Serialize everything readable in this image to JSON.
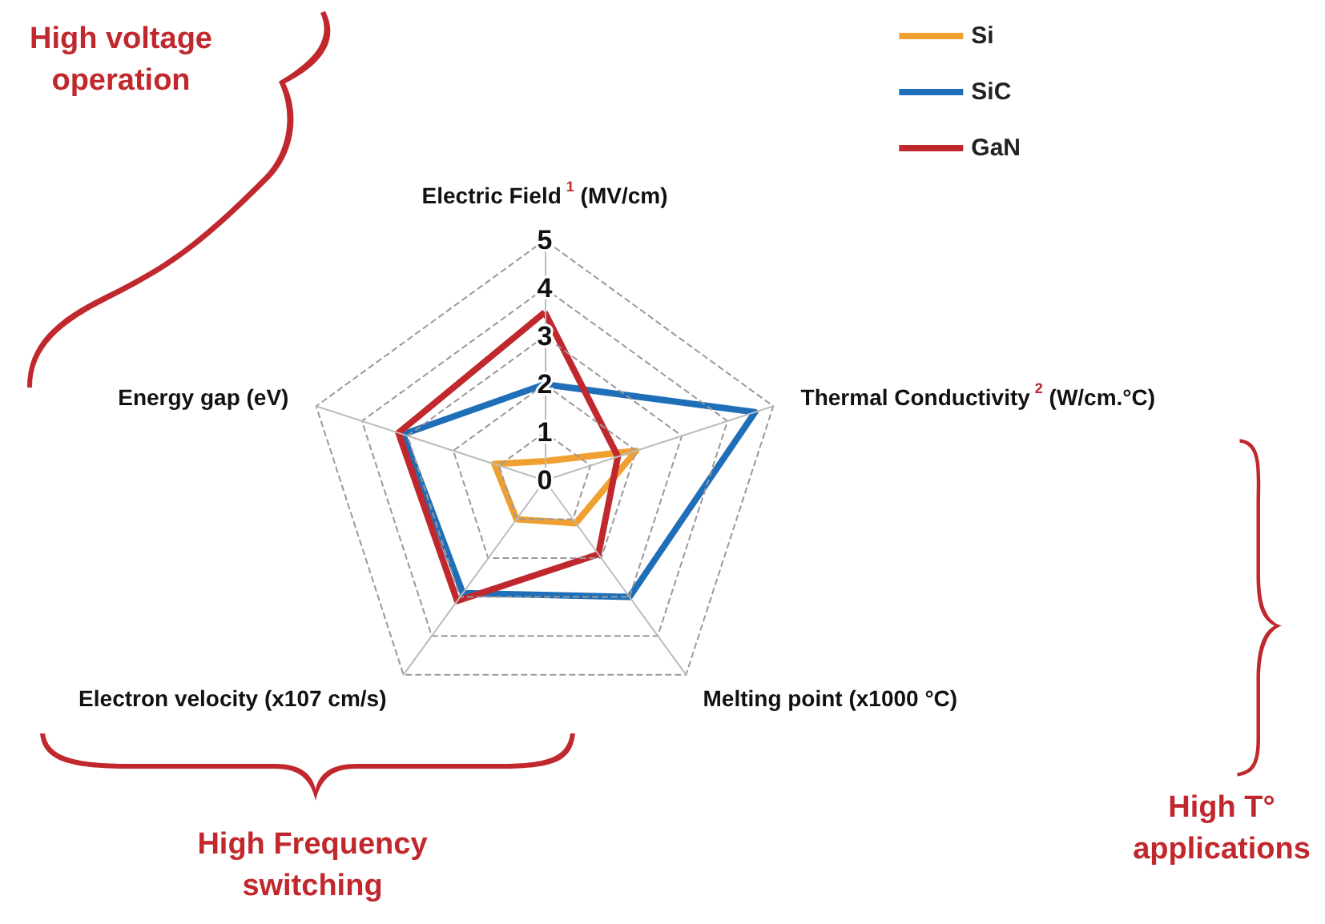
{
  "chart_data": {
    "type": "radar",
    "categories": [
      "Electric Field$^{1}$ (MV/cm)",
      "Thermal Conductivity$^{2}$ (W/cm.°C)",
      "Melting point (x1000 °C)",
      "Electron velocity (x107 cm/s)",
      "Energy gap (eV)"
    ],
    "series": [
      {
        "name": "Si",
        "color": "#f0a030",
        "values": [
          0.4,
          2.0,
          1.1,
          1.0,
          1.1
        ]
      },
      {
        "name": "SiC",
        "color": "#1f6fb8",
        "values": [
          2.0,
          4.6,
          3.0,
          2.9,
          3.1
        ]
      },
      {
        "name": "GaN",
        "color": "#c0282d",
        "values": [
          3.5,
          1.6,
          1.9,
          3.1,
          3.2
        ]
      }
    ],
    "ylim": [
      0,
      5
    ],
    "yticks": [
      0,
      1,
      2,
      3,
      4,
      5
    ],
    "grid": true,
    "legend": "top right",
    "line_style": "solid",
    "marker": "none",
    "annotations": [
      "High voltage operation",
      "High T° applications",
      "High Frequency switching"
    ]
  }
}
